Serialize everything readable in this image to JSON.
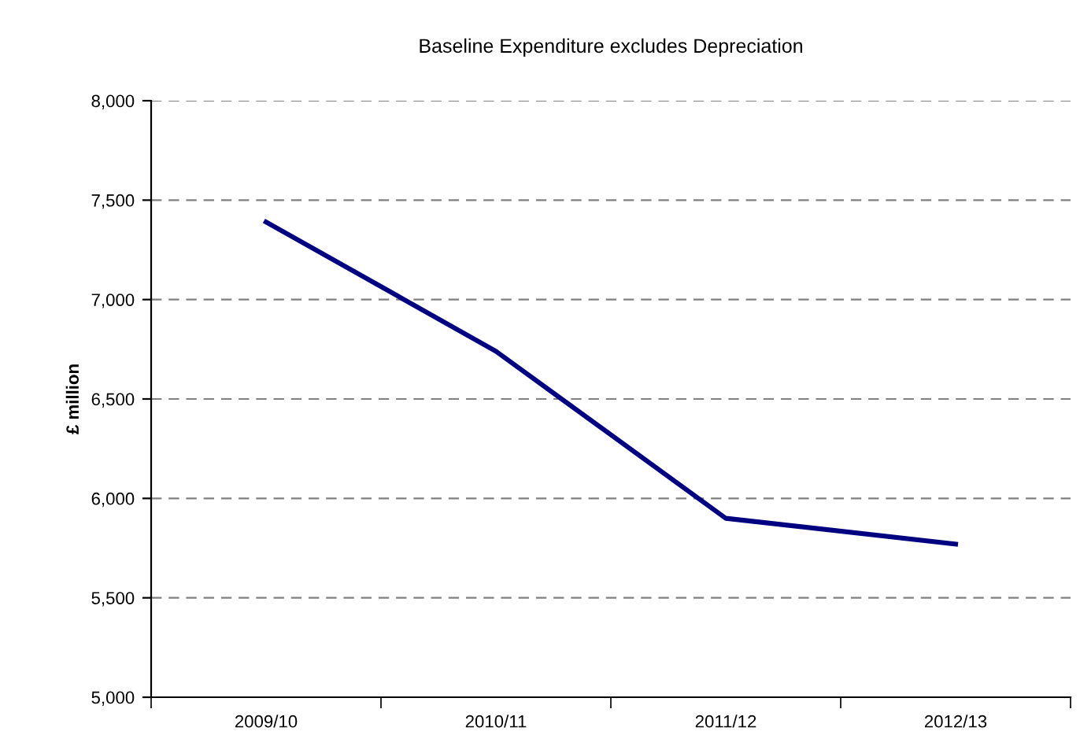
{
  "chart_data": {
    "type": "line",
    "title": "Baseline Expenditure excludes Depreciation",
    "ylabel": "£ million",
    "categories": [
      "2009/10",
      "2010/11",
      "2011/12",
      "2012/13"
    ],
    "series": [
      {
        "color": "#000080",
        "values": [
          7390,
          6740,
          5900,
          5770
        ]
      }
    ],
    "ylim": [
      5000,
      8000
    ],
    "yticks": [
      {
        "value": 5000,
        "label": "5,000"
      },
      {
        "value": 5500,
        "label": "5,500"
      },
      {
        "value": 6000,
        "label": "6,000"
      },
      {
        "value": 6500,
        "label": "6,500"
      },
      {
        "value": 7000,
        "label": "7,000"
      },
      {
        "value": 7500,
        "label": "7,500"
      },
      {
        "value": 8000,
        "label": "8,000"
      }
    ],
    "grid": "y",
    "line_style": "solid",
    "marker": "none"
  }
}
